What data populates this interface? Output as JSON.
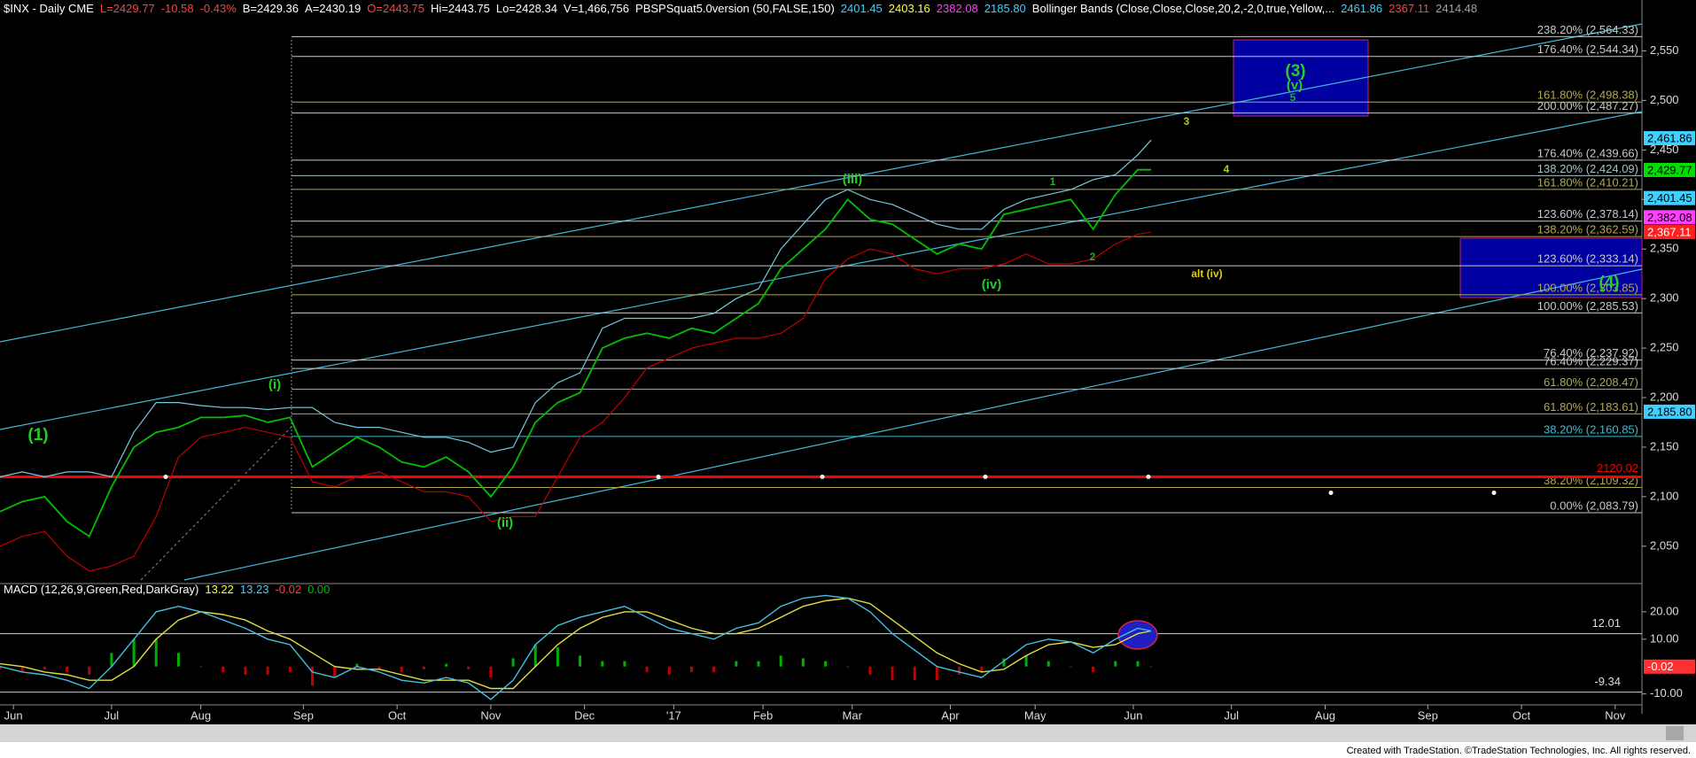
{
  "chart_data": [
    {
      "type": "line",
      "header": [
        {
          "text": "$INX - Daily CME",
          "color": "#ffffff"
        },
        {
          "text": "L=2429.77",
          "color": "#ff4040"
        },
        {
          "text": "-10.58",
          "color": "#ff4040"
        },
        {
          "text": "-0.43%",
          "color": "#ff4040"
        },
        {
          "text": "B=2429.36",
          "color": "#ffffff"
        },
        {
          "text": "A=2430.19",
          "color": "#ffffff"
        },
        {
          "text": "O=2443.75",
          "color": "#ff4040"
        },
        {
          "text": "Hi=2443.75",
          "color": "#ffffff"
        },
        {
          "text": "Lo=2428.34",
          "color": "#ffffff"
        },
        {
          "text": "V=1,466,756",
          "color": "#ffffff"
        },
        {
          "text": "PBSPSquat5.0version (50,FALSE,150)",
          "color": "#ffffff"
        },
        {
          "text": "2401.45",
          "color": "#40d0ff"
        },
        {
          "text": "2403.16",
          "color": "#ffff40"
        },
        {
          "text": "2382.08",
          "color": "#ff40ff"
        },
        {
          "text": "2185.80",
          "color": "#40d0ff"
        },
        {
          "text": "Bollinger Bands (Close,Close,Close,20,2,-2,0,true,Yellow,...",
          "color": "#ffffff"
        },
        {
          "text": "2461.86",
          "color": "#40d0ff"
        },
        {
          "text": "2367.11",
          "color": "#ff4040"
        },
        {
          "text": "2414.48",
          "color": "#a0a0a0"
        }
      ],
      "x": [
        0,
        5,
        10,
        15,
        20,
        25,
        30,
        35,
        40,
        45,
        50,
        55,
        60,
        65,
        70,
        75,
        80,
        85,
        90,
        95,
        100,
        105,
        110,
        115,
        120,
        125,
        130,
        135,
        140,
        145,
        150,
        155,
        160,
        165,
        170,
        175,
        180,
        185,
        190,
        195,
        200,
        205,
        210,
        215,
        220,
        225,
        230,
        235,
        240,
        245,
        250,
        255,
        258
      ],
      "xlim": [
        0,
        368
      ],
      "xticks": [
        {
          "value": 3,
          "label": "Jun"
        },
        {
          "value": 25,
          "label": "Jul"
        },
        {
          "value": 45,
          "label": "Aug"
        },
        {
          "value": 68,
          "label": "Sep"
        },
        {
          "value": 89,
          "label": "Oct"
        },
        {
          "value": 110,
          "label": "Nov"
        },
        {
          "value": 131,
          "label": "Dec"
        },
        {
          "value": 151,
          "label": "'17"
        },
        {
          "value": 171,
          "label": "Feb"
        },
        {
          "value": 191,
          "label": "Mar"
        },
        {
          "value": 213,
          "label": "Apr"
        },
        {
          "value": 232,
          "label": "May"
        },
        {
          "value": 254,
          "label": "Jun"
        },
        {
          "value": 276,
          "label": "Jul"
        },
        {
          "value": 297,
          "label": "Aug"
        },
        {
          "value": 320,
          "label": "Sep"
        },
        {
          "value": 341,
          "label": "Oct"
        },
        {
          "value": 362,
          "label": "Nov"
        }
      ],
      "ylim": [
        2015,
        2596
      ],
      "yticks": [
        {
          "value": 2050,
          "label": "2,050"
        },
        {
          "value": 2100,
          "label": "2,100"
        },
        {
          "value": 2150,
          "label": "2,150"
        },
        {
          "value": 2200,
          "label": "2,200"
        },
        {
          "value": 2250,
          "label": "2,250"
        },
        {
          "value": 2300,
          "label": "2,300"
        },
        {
          "value": 2350,
          "label": "2,350"
        },
        {
          "value": 2400,
          "label": "2,400"
        },
        {
          "value": 2450,
          "label": "2,450"
        },
        {
          "value": 2500,
          "label": "2,500"
        },
        {
          "value": 2550,
          "label": "2,550"
        }
      ],
      "series": [
        {
          "color": "#00c000",
          "values": [
            2085,
            2095,
            2100,
            2075,
            2060,
            2110,
            2150,
            2165,
            2170,
            2180,
            2180,
            2182,
            2175,
            2180,
            2130,
            2145,
            2160,
            2150,
            2135,
            2130,
            2140,
            2125,
            2100,
            2130,
            2175,
            2195,
            2205,
            2250,
            2260,
            2265,
            2260,
            2270,
            2265,
            2280,
            2295,
            2330,
            2350,
            2370,
            2400,
            2380,
            2375,
            2360,
            2345,
            2355,
            2350,
            2385,
            2390,
            2395,
            2400,
            2370,
            2405,
            2430,
            2430
          ]
        },
        {
          "color": "#78c8dc",
          "values": [
            2120,
            2125,
            2120,
            2125,
            2125,
            2120,
            2165,
            2195,
            2195,
            2192,
            2190,
            2190,
            2188,
            2190,
            2190,
            2175,
            2170,
            2170,
            2165,
            2160,
            2160,
            2155,
            2145,
            2150,
            2195,
            2215,
            2225,
            2270,
            2280,
            2280,
            2280,
            2280,
            2285,
            2300,
            2310,
            2350,
            2375,
            2400,
            2410,
            2400,
            2395,
            2385,
            2375,
            2370,
            2370,
            2390,
            2400,
            2405,
            2410,
            2420,
            2425,
            2445,
            2460
          ]
        },
        {
          "color": "#c00000",
          "values": [
            2050,
            2060,
            2065,
            2040,
            2025,
            2030,
            2040,
            2080,
            2140,
            2160,
            2165,
            2170,
            2165,
            2160,
            2115,
            2110,
            2120,
            2125,
            2115,
            2105,
            2105,
            2100,
            2075,
            2080,
            2080,
            2120,
            2160,
            2175,
            2200,
            2230,
            2240,
            2250,
            2255,
            2260,
            2260,
            2265,
            2280,
            2320,
            2340,
            2350,
            2345,
            2330,
            2325,
            2330,
            2330,
            2335,
            2345,
            2335,
            2335,
            2340,
            2355,
            2365,
            2367
          ]
        }
      ],
      "levels": [
        {
          "value": 2564.33,
          "label": "238.20% (2,564.33)",
          "color": "#c8c8c8"
        },
        {
          "value": 2544.34,
          "label": "176.40% (2,544.34)",
          "color": "#c8c8c8"
        },
        {
          "value": 2498.38,
          "label": "161.80% (2,498.38)",
          "color": "#b0a850"
        },
        {
          "value": 2487.27,
          "label": "200.00% (2,487.27)",
          "color": "#c8c8c8"
        },
        {
          "value": 2439.66,
          "label": "176.40% (2,439.66)",
          "color": "#c8c8c8"
        },
        {
          "value": 2424.09,
          "label": "138.20% (2,424.09)",
          "color": "#a8c0c8"
        },
        {
          "value": 2410.21,
          "label": "161.80% (2,410.21)",
          "color": "#b0a850"
        },
        {
          "value": 2378.14,
          "label": "123.60% (2,378.14)",
          "color": "#c8c8c8"
        },
        {
          "value": 2362.59,
          "label": "138.20% (2,362.59)",
          "color": "#b0a850"
        },
        {
          "value": 2333.14,
          "label": "123.60% (2,333.14)",
          "color": "#c8c8c8"
        },
        {
          "value": 2303.85,
          "label": "100.00% (2,303.85)",
          "color": "#b0a850"
        },
        {
          "value": 2285.53,
          "label": "100.00% (2,285.53)",
          "color": "#c8c8c8"
        },
        {
          "value": 2237.92,
          "label": "76.40% (2,237.92)",
          "color": "#c8c8c8"
        },
        {
          "value": 2229.37,
          "label": "76.40% (2,229.37)",
          "color": "#c8c8c8"
        },
        {
          "value": 2208.47,
          "label": "61.80% (2,208.47)",
          "color": "#b0a850"
        },
        {
          "value": 2183.61,
          "label": "61.80% (2,183.61)",
          "color": "#b0a850"
        },
        {
          "value": 2160.85,
          "label": "38.20% (2,160.85)",
          "color": "#40b8d0"
        },
        {
          "value": 2109.32,
          "label": "38.20% (2,109.32)",
          "color": "#b0a850"
        },
        {
          "value": 2083.79,
          "label": "0.00% (2,083.79)",
          "color": "#c8c8c8"
        }
      ],
      "reference_line": {
        "value": 2120.02,
        "label": "2120.02",
        "color": "#ff0000"
      },
      "badges": [
        {
          "value": 2461.86,
          "label": "2,461.86",
          "color": "#40d0ff"
        },
        {
          "value": 2429.77,
          "label": "2,429.77",
          "color": "#00e000"
        },
        {
          "value": 2401.45,
          "label": "2,401.45",
          "color": "#40d0ff"
        },
        {
          "value": 2382.08,
          "label": "2,382.08",
          "color": "#ff40ff"
        },
        {
          "value": 2367.11,
          "label": "2,367.11",
          "color": "#ff2020"
        },
        {
          "value": 2185.8,
          "label": "2,185.80",
          "color": "#40d0ff"
        }
      ],
      "annotations": [
        {
          "text": "(1)",
          "color": "#22d022"
        },
        {
          "text": "(i)",
          "color": "#22d022"
        },
        {
          "text": "(ii)",
          "color": "#22d022"
        },
        {
          "text": "(iii)",
          "color": "#22d022"
        },
        {
          "text": "(iv)",
          "color": "#22d022"
        },
        {
          "text": "(3)",
          "color": "#22d022"
        },
        {
          "text": "(v)",
          "color": "#22d022"
        },
        {
          "text": "5",
          "color": "#22b022"
        },
        {
          "text": "3",
          "color": "#a0d020"
        },
        {
          "text": "4",
          "color": "#a0d020"
        },
        {
          "text": "1",
          "color": "#22b022"
        },
        {
          "text": "2",
          "color": "#22b022"
        },
        {
          "text": "alt (iv)",
          "color": "#e0d000"
        },
        {
          "text": "(4)",
          "color": "#22d022"
        }
      ]
    },
    {
      "type": "macd",
      "header": [
        {
          "text": "MACD (12,26,9,Green,Red,DarkGray)",
          "color": "#ffffff"
        },
        {
          "text": "13.22",
          "color": "#ffff40"
        },
        {
          "text": "13.23",
          "color": "#40d0ff"
        },
        {
          "text": "-0.02",
          "color": "#ff4040"
        },
        {
          "text": "0.00",
          "color": "#00c000"
        }
      ],
      "x": [
        0,
        5,
        10,
        15,
        20,
        25,
        30,
        35,
        40,
        45,
        50,
        55,
        60,
        65,
        70,
        75,
        80,
        85,
        90,
        95,
        100,
        105,
        110,
        115,
        120,
        125,
        130,
        135,
        140,
        145,
        150,
        155,
        160,
        165,
        170,
        175,
        180,
        185,
        190,
        195,
        200,
        205,
        210,
        215,
        220,
        225,
        230,
        235,
        240,
        245,
        250,
        255,
        258
      ],
      "ylim": [
        -14,
        30
      ],
      "yticks": [
        {
          "value": 20,
          "label": "20.00"
        },
        {
          "value": 10,
          "label": "10.00"
        },
        {
          "value": -10,
          "label": "-10.00"
        }
      ],
      "series": [
        {
          "color": "#40c0e0",
          "values": [
            0,
            -2,
            -3,
            -5,
            -8,
            0,
            10,
            20,
            22,
            20,
            17,
            14,
            10,
            8,
            -2,
            -4,
            0,
            -2,
            -5,
            -6,
            -4,
            -6,
            -12,
            -5,
            8,
            15,
            18,
            20,
            22,
            18,
            14,
            12,
            10,
            14,
            16,
            22,
            25,
            26,
            25,
            20,
            12,
            6,
            0,
            -2,
            -4,
            2,
            8,
            10,
            9,
            5,
            10,
            14,
            13
          ]
        },
        {
          "color": "#e0e040",
          "values": [
            1,
            0,
            -2,
            -3,
            -5,
            -5,
            0,
            10,
            17,
            20,
            19,
            17,
            13,
            10,
            5,
            0,
            -1,
            -1,
            -3,
            -5,
            -5,
            -5,
            -8,
            -8,
            0,
            8,
            14,
            18,
            20,
            20,
            17,
            14,
            12,
            12,
            14,
            18,
            22,
            24,
            25,
            23,
            17,
            11,
            5,
            1,
            -2,
            -1,
            4,
            8,
            9,
            7,
            8,
            12,
            13
          ]
        }
      ],
      "histogram": {
        "colors": [
          "#00b000",
          "#c00000"
        ],
        "values": [
          -1,
          -2,
          -1,
          -2,
          -3,
          5,
          10,
          10,
          5,
          0,
          -2,
          -3,
          -3,
          -2,
          -7,
          -4,
          1,
          -1,
          -2,
          -1,
          1,
          -1,
          -4,
          3,
          8,
          7,
          4,
          2,
          2,
          -2,
          -3,
          -2,
          -2,
          2,
          2,
          4,
          3,
          2,
          0,
          -3,
          -5,
          -5,
          -5,
          -3,
          -2,
          3,
          4,
          2,
          0,
          -2,
          2,
          2,
          0
        ]
      },
      "levels": [
        {
          "value": 12.01,
          "label": "12.01"
        },
        {
          "value": -9.34,
          "label": "-9.34"
        }
      ],
      "badges": [
        {
          "value": -0.02,
          "label": "-0.02",
          "color": "#ff3030"
        }
      ]
    }
  ],
  "footer": "Created with TradeStation. ©TradeStation Technologies, Inc. All rights reserved."
}
